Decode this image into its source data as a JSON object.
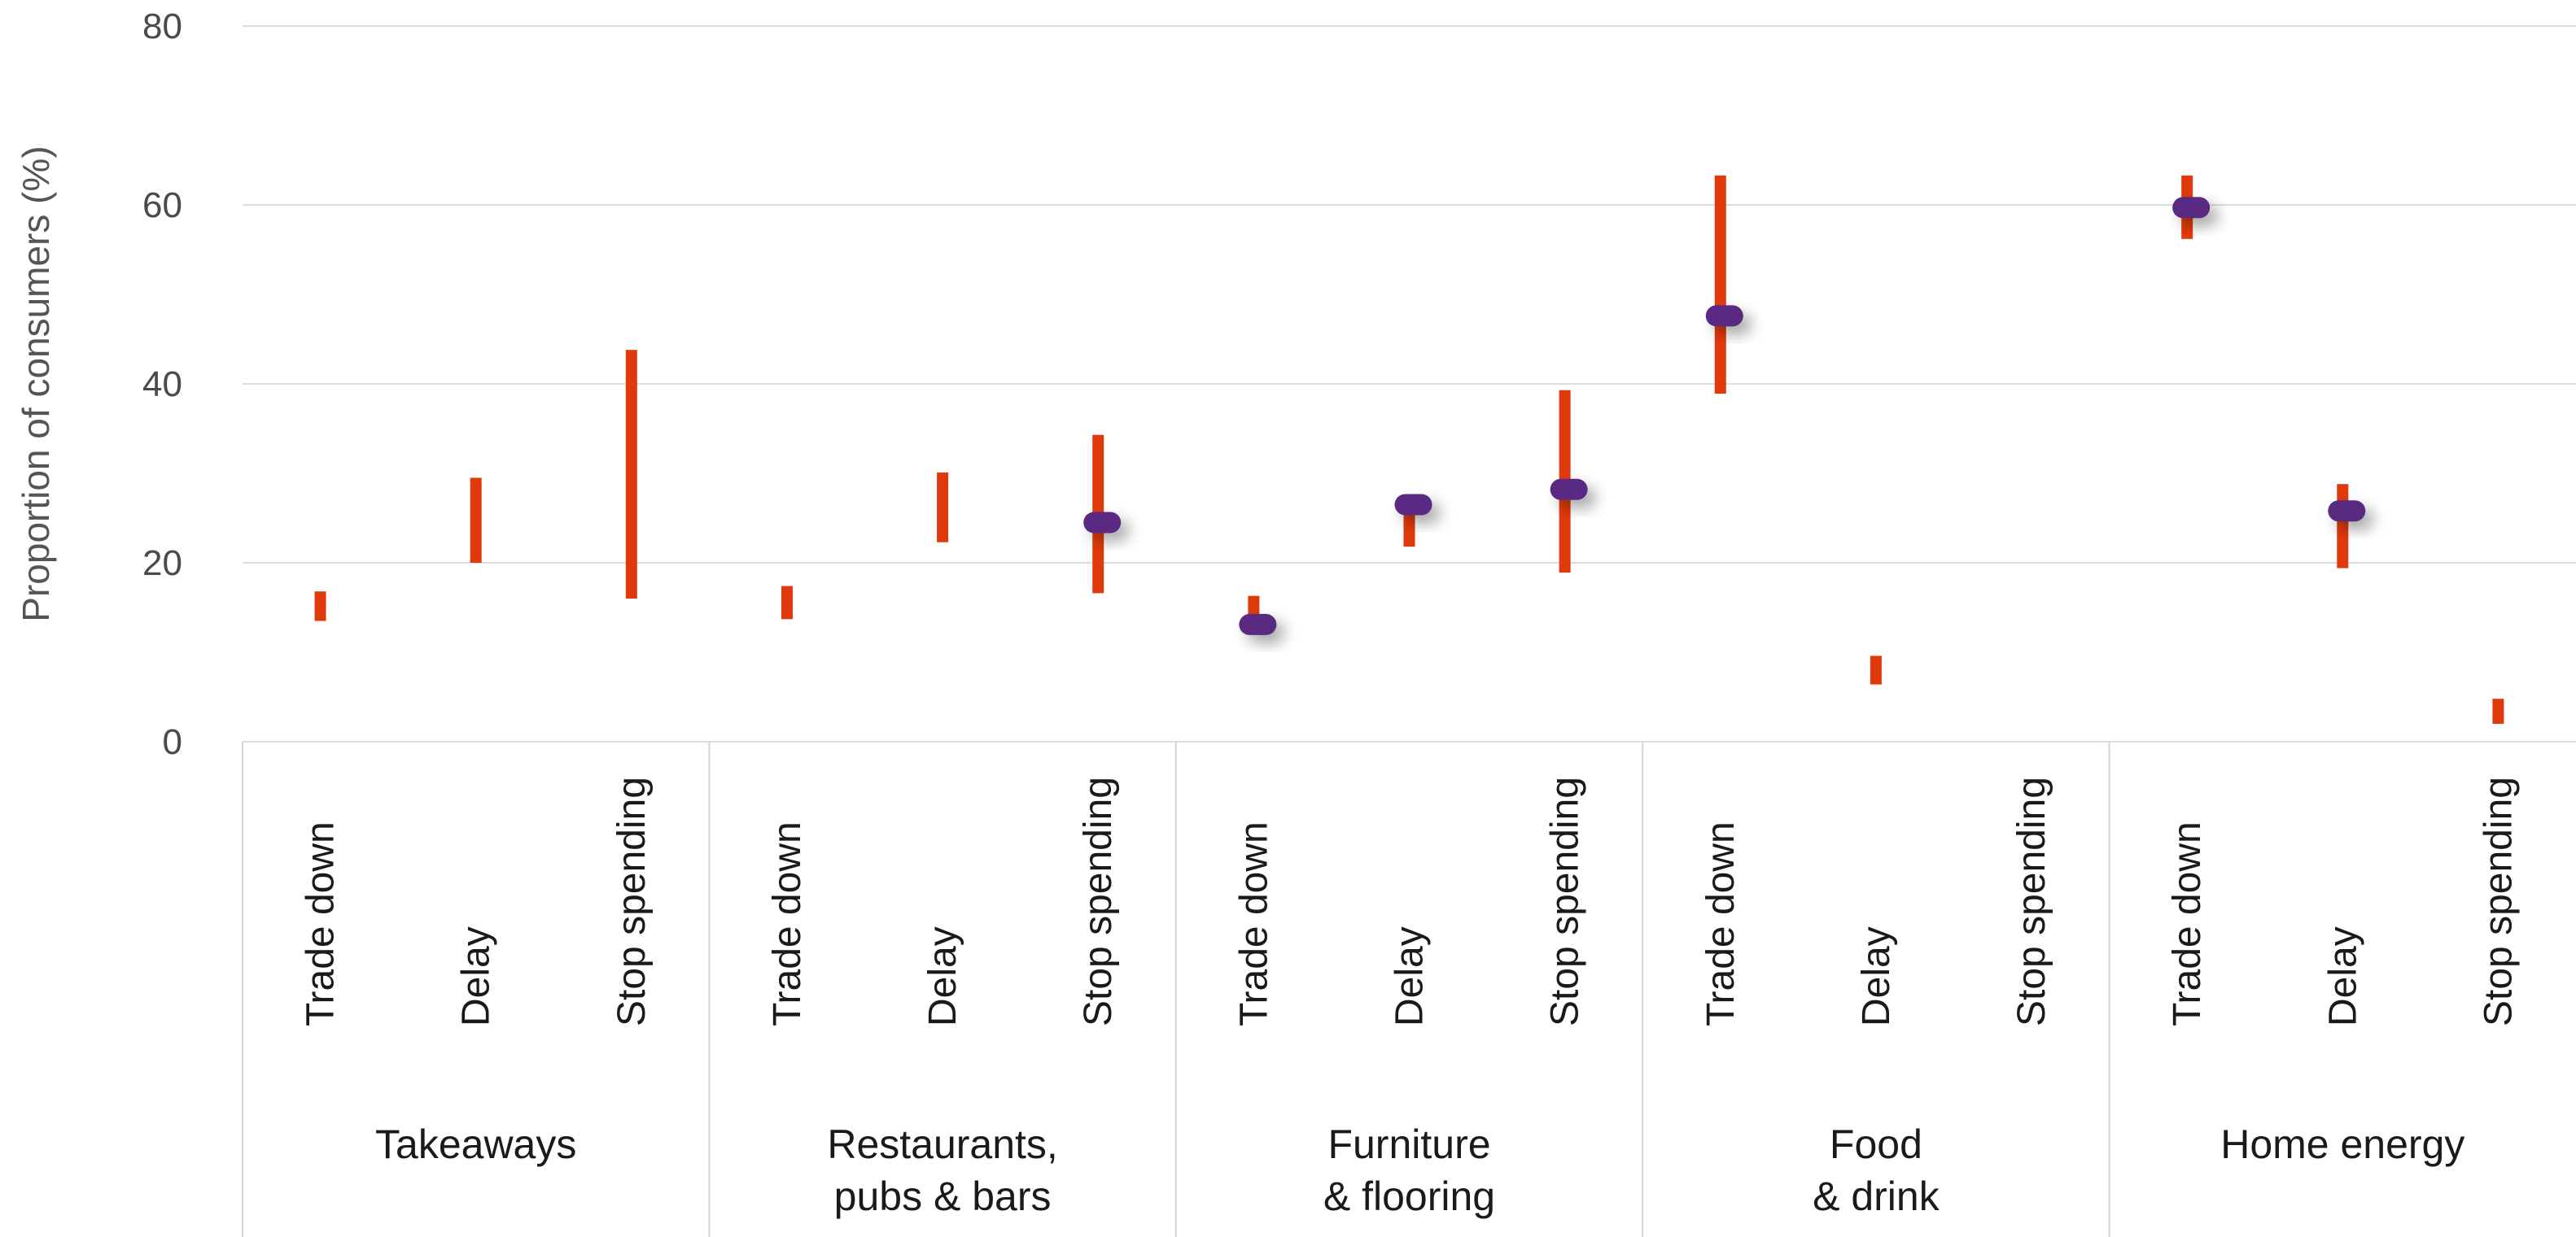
{
  "chart_data": {
    "type": "range",
    "ylabel": "Proportion of consumers (%)",
    "ylim": [
      0,
      80
    ],
    "yticks": [
      0,
      20,
      40,
      60,
      80
    ],
    "grid": true,
    "colors": {
      "range": "#e03a0c",
      "point": "#5a2a82",
      "grid": "#dcdcdc"
    },
    "groups": [
      {
        "name": [
          "Takeaways"
        ],
        "items": [
          {
            "label": "Trade down",
            "low": 13.5,
            "high": 16.8,
            "point": null
          },
          {
            "label": "Delay",
            "low": 20,
            "high": 29.5,
            "point": null
          },
          {
            "label": "Stop spending",
            "low": 16,
            "high": 43.8,
            "point": null
          }
        ]
      },
      {
        "name": [
          "Restaurants,",
          "pubs & bars"
        ],
        "items": [
          {
            "label": "Trade down",
            "low": 13.7,
            "high": 17.4,
            "point": null
          },
          {
            "label": "Delay",
            "low": 22.3,
            "high": 30.1,
            "point": null
          },
          {
            "label": "Stop spending",
            "low": 16.6,
            "high": 34.3,
            "point": 24.5
          }
        ]
      },
      {
        "name": [
          "Furniture",
          "& flooring"
        ],
        "items": [
          {
            "label": "Trade down",
            "low": 13,
            "high": 16.3,
            "point": 13.1
          },
          {
            "label": "Delay",
            "low": 21.8,
            "high": 26.6,
            "point": 26.5
          },
          {
            "label": "Stop spending",
            "low": 18.9,
            "high": 39.3,
            "point": 28.2
          }
        ]
      },
      {
        "name": [
          "Food",
          "& drink"
        ],
        "items": [
          {
            "label": "Trade down",
            "low": 38.9,
            "high": 63.3,
            "point": 47.6
          },
          {
            "label": "Delay",
            "low": 6.4,
            "high": 9.6,
            "point": null
          },
          {
            "label": "Stop spending",
            "low": null,
            "high": null,
            "point": null
          }
        ]
      },
      {
        "name": [
          "Home energy"
        ],
        "items": [
          {
            "label": "Trade down",
            "low": 56.2,
            "high": 63.3,
            "point": 59.7
          },
          {
            "label": "Delay",
            "low": 19.4,
            "high": 28.8,
            "point": 25.8
          },
          {
            "label": "Stop spending",
            "low": 2,
            "high": 4.8,
            "point": null
          }
        ]
      }
    ]
  }
}
